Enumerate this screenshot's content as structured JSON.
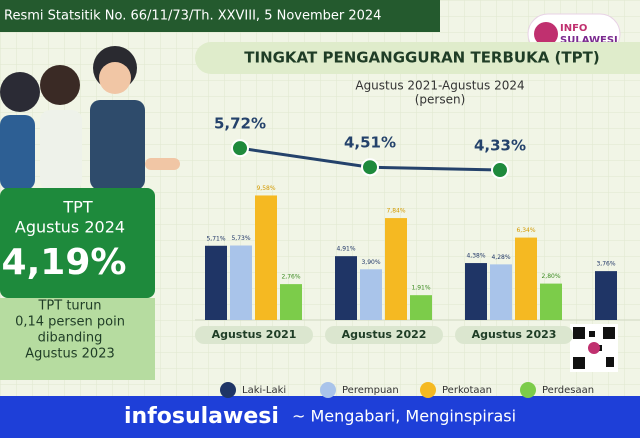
{
  "header": {
    "subtitle": "Resmi Statsitik No. 66/11/73/Th. XXVIII, 5 November 2024"
  },
  "logo": {
    "top": "INFO",
    "bottom": "SULAWESI"
  },
  "sidebar": {
    "label": "TPT",
    "period": "Agustus 2024",
    "value": "4,19%",
    "note": [
      "TPT turun",
      "0,14 persen poin",
      "dibanding",
      "Agustus 2023"
    ]
  },
  "chart_data": {
    "type": "bar",
    "title": "TINGKAT PENGANGGURAN TERBUKA (TPT)",
    "subtitle": "Agustus 2021-Agustus 2024",
    "unit": "(persen)",
    "categories": [
      "Agustus 2021",
      "Agustus 2022",
      "Agustus 2023",
      null
    ],
    "ylim": [
      0,
      10
    ],
    "y2lim": [
      3,
      7
    ],
    "series": [
      {
        "name": "Laki-Laki",
        "color": "#1f3566",
        "values": [
          5.71,
          4.91,
          4.38,
          3.76
        ],
        "value_labels": [
          "5,71%",
          "4,91%",
          "4,38%",
          "3,76%"
        ]
      },
      {
        "name": "Perempuan",
        "color": "#a9c4ea",
        "values": [
          5.73,
          3.9,
          4.28,
          null
        ],
        "value_labels": [
          "5,73%",
          "3,90%",
          "4,28%",
          null
        ]
      },
      {
        "name": "Perkotaan",
        "color": "#f5b922",
        "values": [
          9.58,
          7.84,
          6.34,
          null
        ],
        "value_labels": [
          "9,58%",
          "7,84%",
          "6,34%",
          null
        ]
      },
      {
        "name": "Perdesaan",
        "color": "#7ccc4a",
        "values": [
          2.76,
          1.91,
          2.8,
          null
        ],
        "value_labels": [
          "2,76%",
          "1,91%",
          "2,80%",
          null
        ]
      },
      {
        "type": "line",
        "axis": "y2",
        "color": "#24426b",
        "values": [
          5.72,
          4.51,
          4.33,
          null
        ],
        "value_labels": [
          "5,72%",
          "4,51%",
          "4,33%",
          null
        ]
      }
    ]
  },
  "footer": {
    "brand": "infosulawesi",
    "tagline": "~ Mengabari, Menginspirasi"
  }
}
